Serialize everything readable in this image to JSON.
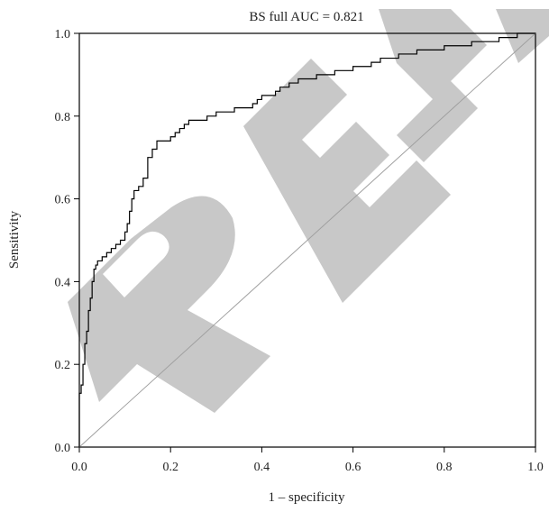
{
  "chart_data": {
    "type": "line",
    "title": "BS full AUC = 0.821",
    "xlabel": "1 – specificity",
    "ylabel": "Sensitivity",
    "xlim": [
      0,
      1
    ],
    "ylim": [
      0,
      1
    ],
    "x_ticks": [
      "0.0",
      "0.2",
      "0.4",
      "0.6",
      "0.8",
      "1.0"
    ],
    "y_ticks": [
      "0.0",
      "0.2",
      "0.4",
      "0.6",
      "0.8",
      "1.0"
    ],
    "grid": false,
    "series": [
      {
        "x": [
          0.0,
          0.0,
          0.004,
          0.004,
          0.008,
          0.008,
          0.012,
          0.012,
          0.016,
          0.016,
          0.02,
          0.02,
          0.024,
          0.024,
          0.028,
          0.028,
          0.032,
          0.032,
          0.036,
          0.036,
          0.04,
          0.04,
          0.05,
          0.05,
          0.06,
          0.06,
          0.07,
          0.07,
          0.08,
          0.08,
          0.09,
          0.09,
          0.1,
          0.1,
          0.105,
          0.105,
          0.11,
          0.11,
          0.115,
          0.115,
          0.12,
          0.12,
          0.13,
          0.13,
          0.14,
          0.14,
          0.15,
          0.15,
          0.16,
          0.16,
          0.17,
          0.17,
          0.2,
          0.2,
          0.21,
          0.21,
          0.22,
          0.22,
          0.23,
          0.23,
          0.24,
          0.24,
          0.28,
          0.28,
          0.3,
          0.3,
          0.34,
          0.34,
          0.38,
          0.38,
          0.39,
          0.39,
          0.4,
          0.4,
          0.43,
          0.43,
          0.44,
          0.44,
          0.46,
          0.46,
          0.48,
          0.48,
          0.52,
          0.52,
          0.56,
          0.56,
          0.6,
          0.6,
          0.64,
          0.64,
          0.66,
          0.66,
          0.7,
          0.7,
          0.74,
          0.74,
          0.8,
          0.8,
          0.86,
          0.86,
          0.92,
          0.92,
          0.96,
          0.96,
          0.98,
          0.98,
          1.0
        ],
        "y": [
          0.0,
          0.13,
          0.13,
          0.15,
          0.15,
          0.2,
          0.2,
          0.25,
          0.25,
          0.28,
          0.28,
          0.33,
          0.33,
          0.36,
          0.36,
          0.4,
          0.4,
          0.43,
          0.43,
          0.44,
          0.44,
          0.45,
          0.45,
          0.46,
          0.46,
          0.47,
          0.47,
          0.48,
          0.48,
          0.49,
          0.49,
          0.5,
          0.5,
          0.52,
          0.52,
          0.54,
          0.54,
          0.57,
          0.57,
          0.6,
          0.6,
          0.62,
          0.62,
          0.63,
          0.63,
          0.65,
          0.65,
          0.7,
          0.7,
          0.72,
          0.72,
          0.74,
          0.74,
          0.75,
          0.75,
          0.76,
          0.76,
          0.77,
          0.77,
          0.78,
          0.78,
          0.79,
          0.79,
          0.8,
          0.8,
          0.81,
          0.81,
          0.82,
          0.82,
          0.83,
          0.83,
          0.84,
          0.84,
          0.85,
          0.85,
          0.86,
          0.86,
          0.87,
          0.87,
          0.88,
          0.88,
          0.89,
          0.89,
          0.9,
          0.9,
          0.91,
          0.91,
          0.92,
          0.92,
          0.93,
          0.93,
          0.94,
          0.94,
          0.95,
          0.95,
          0.96,
          0.96,
          0.97,
          0.97,
          0.98,
          0.98,
          0.99,
          0.99,
          1.0,
          1.0,
          1.0,
          1.0
        ]
      },
      {
        "x": [
          0,
          1
        ],
        "y": [
          0,
          1
        ]
      }
    ]
  },
  "watermark": {
    "text": "RETRACTED",
    "color": "#c8c8c8"
  },
  "colors": {
    "roc_line": "#000000",
    "diagonal": "#a0a0a0",
    "frame": "#000000"
  }
}
